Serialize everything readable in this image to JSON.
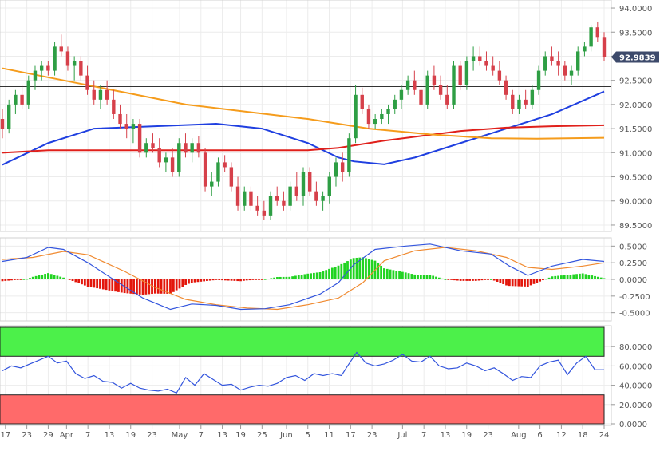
{
  "chart_data": [
    {
      "type": "candlestick",
      "panel": "price",
      "ylim": [
        89.4,
        94.1
      ],
      "y_ticks": [
        "94.0000",
        "93.5000",
        "93.0000",
        "92.5000",
        "92.0000",
        "91.5000",
        "91.0000",
        "90.5000",
        "90.0000",
        "89.5000"
      ],
      "y_tick_values": [
        94.0,
        93.5,
        93.0,
        92.5,
        92.0,
        91.5,
        91.0,
        90.5,
        90.0,
        89.5
      ],
      "last_price": 92.9839,
      "last_price_label": "92.9839",
      "horizontal_levels": [
        92.9839,
        92.37
      ],
      "candles_ohlc": [
        [
          91.7,
          91.9,
          91.3,
          91.5
        ],
        [
          91.5,
          92.1,
          91.4,
          92.0
        ],
        [
          92.0,
          92.3,
          91.8,
          92.2
        ],
        [
          92.2,
          92.4,
          91.9,
          92.0
        ],
        [
          92.0,
          92.6,
          91.9,
          92.5
        ],
        [
          92.5,
          92.8,
          92.3,
          92.7
        ],
        [
          92.7,
          92.9,
          92.5,
          92.8
        ],
        [
          92.8,
          92.9,
          92.6,
          92.7
        ],
        [
          92.7,
          93.3,
          92.6,
          93.2
        ],
        [
          93.2,
          93.45,
          93.0,
          93.1
        ],
        [
          93.1,
          93.2,
          92.7,
          92.8
        ],
        [
          92.8,
          93.0,
          92.5,
          92.9
        ],
        [
          92.9,
          93.0,
          92.5,
          92.6
        ],
        [
          92.6,
          92.8,
          92.2,
          92.3
        ],
        [
          92.3,
          92.5,
          92.0,
          92.1
        ],
        [
          92.1,
          92.4,
          91.9,
          92.3
        ],
        [
          92.3,
          92.5,
          92.0,
          92.1
        ],
        [
          92.1,
          92.3,
          91.7,
          91.8
        ],
        [
          91.8,
          92.0,
          91.5,
          91.6
        ],
        [
          91.6,
          91.8,
          91.3,
          91.5
        ],
        [
          91.5,
          91.7,
          91.2,
          91.6
        ],
        [
          91.6,
          91.7,
          90.9,
          91.0
        ],
        [
          91.0,
          91.3,
          90.9,
          91.2
        ],
        [
          91.2,
          91.4,
          91.0,
          91.1
        ],
        [
          91.1,
          91.3,
          90.7,
          90.8
        ],
        [
          90.8,
          91.0,
          90.6,
          90.9
        ],
        [
          90.9,
          91.1,
          90.5,
          90.6
        ],
        [
          90.6,
          91.3,
          90.5,
          91.2
        ],
        [
          91.2,
          91.4,
          90.9,
          91.0
        ],
        [
          91.0,
          91.3,
          90.8,
          91.2
        ],
        [
          91.2,
          91.35,
          90.9,
          91.0
        ],
        [
          91.0,
          91.1,
          90.2,
          90.3
        ],
        [
          90.3,
          90.6,
          90.1,
          90.4
        ],
        [
          90.4,
          90.9,
          90.3,
          90.8
        ],
        [
          90.8,
          90.95,
          90.6,
          90.7
        ],
        [
          90.7,
          90.8,
          90.2,
          90.3
        ],
        [
          90.3,
          90.5,
          89.8,
          89.9
        ],
        [
          89.9,
          90.3,
          89.8,
          90.2
        ],
        [
          90.2,
          90.3,
          89.8,
          89.9
        ],
        [
          89.9,
          90.1,
          89.7,
          89.8
        ],
        [
          89.8,
          90.0,
          89.6,
          89.7
        ],
        [
          89.7,
          90.2,
          89.6,
          90.1
        ],
        [
          90.1,
          90.3,
          89.9,
          90.0
        ],
        [
          90.0,
          90.2,
          89.8,
          89.9
        ],
        [
          89.9,
          90.4,
          89.8,
          90.3
        ],
        [
          90.3,
          90.6,
          90.0,
          90.1
        ],
        [
          90.1,
          90.7,
          89.9,
          90.6
        ],
        [
          90.6,
          90.7,
          90.1,
          90.2
        ],
        [
          90.2,
          90.4,
          89.9,
          90.0
        ],
        [
          90.0,
          90.2,
          89.8,
          90.1
        ],
        [
          90.1,
          90.6,
          89.95,
          90.5
        ],
        [
          90.5,
          90.9,
          90.3,
          90.8
        ],
        [
          90.8,
          91.0,
          90.4,
          90.6
        ],
        [
          90.6,
          91.4,
          90.5,
          91.3
        ],
        [
          91.3,
          92.4,
          91.2,
          92.2
        ],
        [
          92.2,
          92.35,
          91.8,
          91.9
        ],
        [
          91.9,
          92.0,
          91.5,
          91.6
        ],
        [
          91.6,
          91.8,
          91.5,
          91.7
        ],
        [
          91.7,
          91.9,
          91.6,
          91.8
        ],
        [
          91.8,
          92.0,
          91.6,
          91.9
        ],
        [
          91.9,
          92.2,
          91.8,
          92.1
        ],
        [
          92.1,
          92.4,
          91.9,
          92.3
        ],
        [
          92.3,
          92.6,
          92.2,
          92.5
        ],
        [
          92.5,
          92.7,
          92.2,
          92.3
        ],
        [
          92.3,
          92.5,
          91.9,
          92.0
        ],
        [
          92.0,
          92.7,
          91.9,
          92.6
        ],
        [
          92.6,
          92.8,
          92.3,
          92.4
        ],
        [
          92.4,
          92.6,
          92.1,
          92.2
        ],
        [
          92.2,
          92.4,
          91.9,
          92.0
        ],
        [
          92.0,
          92.9,
          91.9,
          92.8
        ],
        [
          92.8,
          92.9,
          92.3,
          92.4
        ],
        [
          92.4,
          93.0,
          92.3,
          92.9
        ],
        [
          92.9,
          93.2,
          92.7,
          93.0
        ],
        [
          93.0,
          93.2,
          92.8,
          92.9
        ],
        [
          92.9,
          93.1,
          92.7,
          92.8
        ],
        [
          92.8,
          93.0,
          92.6,
          92.7
        ],
        [
          92.7,
          92.9,
          92.4,
          92.5
        ],
        [
          92.5,
          92.6,
          92.1,
          92.2
        ],
        [
          92.2,
          92.3,
          91.8,
          91.9
        ],
        [
          91.9,
          92.2,
          91.8,
          92.1
        ],
        [
          92.1,
          92.3,
          91.9,
          92.0
        ],
        [
          92.0,
          92.4,
          91.9,
          92.3
        ],
        [
          92.3,
          92.8,
          92.2,
          92.7
        ],
        [
          92.7,
          93.1,
          92.6,
          93.0
        ],
        [
          93.0,
          93.2,
          92.8,
          92.9
        ],
        [
          92.9,
          93.1,
          92.6,
          92.8
        ],
        [
          92.8,
          92.9,
          92.5,
          92.6
        ],
        [
          92.6,
          92.8,
          92.4,
          92.7
        ],
        [
          92.7,
          93.2,
          92.6,
          93.1
        ],
        [
          93.1,
          93.3,
          93.0,
          93.2
        ],
        [
          93.2,
          93.65,
          93.1,
          93.6
        ],
        [
          93.6,
          93.72,
          93.3,
          93.4
        ],
        [
          93.4,
          93.5,
          92.9,
          92.98
        ]
      ],
      "x_tick_labels": [
        "17",
        "23",
        "29",
        "Apr",
        "7",
        "13",
        "19",
        "23",
        "May",
        "7",
        "13",
        "19",
        "25",
        "Jun",
        "5",
        "11",
        "17",
        "23",
        "Jul",
        "7",
        "13",
        "19",
        "23",
        "Aug",
        "6",
        "12",
        "18",
        "24"
      ],
      "x_tick_positions": [
        1,
        8,
        15,
        21,
        28,
        35,
        42,
        49,
        58,
        65,
        72,
        78,
        85,
        93,
        100,
        107,
        114,
        121,
        131,
        138,
        145,
        152,
        159,
        169,
        176,
        183,
        190,
        197
      ],
      "x_range": [
        0,
        197
      ],
      "moving_averages": [
        {
          "color": "#1f3fe0",
          "x": [
            0,
            15,
            30,
            50,
            70,
            85,
            100,
            110,
            115,
            125,
            135,
            150,
            165,
            180,
            197
          ],
          "y": [
            90.75,
            91.2,
            91.5,
            91.55,
            91.6,
            91.5,
            91.2,
            90.9,
            90.82,
            90.76,
            90.9,
            91.2,
            91.5,
            91.8,
            92.27
          ]
        },
        {
          "color": "#e0201b",
          "x": [
            0,
            15,
            50,
            100,
            110,
            125,
            150,
            165,
            180,
            197
          ],
          "y": [
            91.0,
            91.05,
            91.05,
            91.05,
            91.1,
            91.25,
            91.45,
            91.52,
            91.55,
            91.57
          ]
        },
        {
          "color": "#f59c1c",
          "x": [
            0,
            20,
            40,
            60,
            80,
            100,
            120,
            140,
            160,
            175,
            197
          ],
          "y": [
            92.75,
            92.5,
            92.25,
            92.0,
            91.85,
            91.7,
            91.5,
            91.38,
            91.3,
            91.29,
            91.31
          ]
        }
      ]
    },
    {
      "type": "macd",
      "panel": "macd",
      "ylim": [
        -0.6,
        0.6
      ],
      "y_ticks": [
        "0.5000",
        "0.2500",
        "0.0000",
        "-0.2500",
        "-0.5000"
      ],
      "y_tick_values": [
        0.5,
        0.25,
        0.0,
        -0.25,
        -0.5
      ],
      "macd_line": {
        "color": "#3355dd",
        "x": [
          0,
          8,
          15,
          20,
          28,
          38,
          46,
          55,
          62,
          70,
          78,
          86,
          94,
          104,
          110,
          115,
          122,
          132,
          140,
          150,
          160,
          166,
          172,
          180,
          190,
          197
        ],
        "y": [
          0.27,
          0.33,
          0.48,
          0.45,
          0.25,
          -0.05,
          -0.28,
          -0.45,
          -0.37,
          -0.39,
          -0.45,
          -0.44,
          -0.38,
          -0.22,
          -0.05,
          0.22,
          0.45,
          0.5,
          0.53,
          0.43,
          0.38,
          0.2,
          0.06,
          0.2,
          0.3,
          0.27
        ]
      },
      "signal_line": {
        "color": "#f08a30",
        "x": [
          0,
          10,
          20,
          28,
          40,
          50,
          60,
          70,
          80,
          90,
          100,
          110,
          118,
          125,
          135,
          145,
          155,
          165,
          172,
          180,
          190,
          197
        ],
        "y": [
          0.3,
          0.33,
          0.42,
          0.37,
          0.12,
          -0.12,
          -0.3,
          -0.38,
          -0.43,
          -0.45,
          -0.38,
          -0.28,
          -0.05,
          0.28,
          0.43,
          0.48,
          0.43,
          0.33,
          0.18,
          0.15,
          0.2,
          0.25
        ]
      },
      "histogram_color_positive": "#21d321",
      "histogram_color_negative": "#e3160b"
    },
    {
      "type": "line",
      "panel": "rsi",
      "ylim": [
        0,
        100
      ],
      "y_ticks": [
        "80.0000",
        "60.0000",
        "40.0000",
        "20.0000",
        "0.0000"
      ],
      "y_tick_values": [
        80,
        60,
        40,
        20,
        0
      ],
      "overbought_band": [
        70,
        100
      ],
      "oversold_band": [
        0,
        30
      ],
      "overbought_color": "#4cf04a",
      "oversold_color": "#ff6a6a",
      "rsi_line": {
        "color": "#3355dd",
        "x": [
          0,
          3,
          6,
          9,
          12,
          15,
          18,
          21,
          24,
          27,
          30,
          33,
          36,
          39,
          42,
          45,
          48,
          51,
          54,
          57,
          60,
          63,
          66,
          69,
          72,
          75,
          78,
          81,
          84,
          87,
          90,
          93,
          96,
          99,
          102,
          105,
          108,
          111,
          113,
          116,
          119,
          122,
          125,
          128,
          131,
          134,
          137,
          140,
          143,
          146,
          149,
          152,
          155,
          158,
          161,
          164,
          167,
          170,
          173,
          176,
          179,
          182,
          185,
          188,
          191,
          194,
          197
        ],
        "y": [
          55,
          60,
          58,
          62,
          66,
          70,
          63,
          65,
          52,
          47,
          50,
          44,
          43,
          37,
          42,
          37,
          35,
          34,
          36,
          32,
          48,
          40,
          52,
          46,
          40,
          41,
          35,
          38,
          40,
          39,
          42,
          48,
          50,
          45,
          52,
          50,
          52,
          50,
          60,
          74,
          63,
          60,
          62,
          66,
          72,
          65,
          64,
          70,
          60,
          57,
          58,
          63,
          60,
          55,
          58,
          52,
          45,
          49,
          48,
          60,
          64,
          66,
          51,
          63,
          70,
          56,
          56
        ]
      }
    }
  ]
}
